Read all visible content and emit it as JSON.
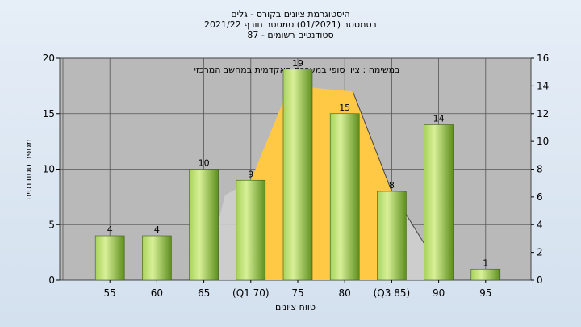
{
  "chart_data": {
    "type": "bar",
    "title": "היסטוגרמת ציונים בקורס - גלים",
    "subtitle": "בסמסטר  (01/2021)  סמסטר חורף  2021/22",
    "subtitle2": "סטודנטים רשומים - 87",
    "annotation": "במשימה : ציון סופי במערכת האקדמית במחשב המרכזי",
    "xlabel": "טווח ציונים",
    "ylabel": "מספר סטודנטים",
    "categories": [
      "55",
      "60",
      "65",
      "(Q1 70)",
      "75",
      "80",
      "(Q3 85)",
      "90",
      "95"
    ],
    "values": [
      4,
      4,
      10,
      9,
      19,
      15,
      8,
      14,
      1
    ],
    "ylim": [
      0,
      20
    ],
    "yticks": [
      "0",
      "5",
      "10",
      "15",
      "20"
    ],
    "y2lim": [
      0,
      16
    ],
    "y2ticks": [
      "0",
      "2",
      "4",
      "6",
      "8",
      "10",
      "12",
      "14",
      "16"
    ],
    "grid": true,
    "colors": {
      "plot_bg": "#b9b9b9",
      "bar_light": "#d4ec8e",
      "bar_dark": "#5c8a1c",
      "iqr_fill": "#ffc845",
      "curve_fill": "#cfcfcf"
    }
  }
}
